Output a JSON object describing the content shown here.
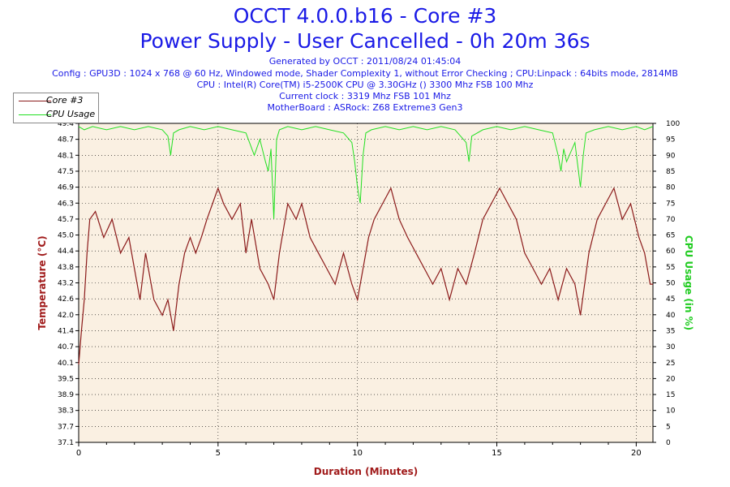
{
  "header": {
    "title": "OCCT 4.0.0.b16 - Core #3",
    "subtitle": "Power Supply - User Cancelled - 0h 20m 36s",
    "generated": "Generated by OCCT : 2011/08/24 01:45:04",
    "config": "Config : GPU3D : 1024 x 768 @ 60 Hz, Windowed mode, Shader Complexity 1, without Error Checking ; CPU:Linpack : 64bits mode, 2814MB",
    "cpu": "CPU : Intel(R) Core(TM) i5-2500K CPU @ 3.30GHz () 3300 Mhz FSB 100 Mhz",
    "clock": "Current clock : 3319 Mhz FSB 101 Mhz",
    "motherboard": "MotherBoard : ASRock: Z68 Extreme3 Gen3"
  },
  "colors": {
    "title": "#1a1ae6",
    "temperature": "#8b1a1a",
    "cpu_usage": "#22e022",
    "plot_bg": "#faf0e2",
    "axis_label_left": "#a01a1a",
    "axis_label_right": "#22cc22"
  },
  "chart_data": {
    "type": "line",
    "xlabel": "Duration (Minutes)",
    "ylabel": "Temperature (°C)",
    "y2label": "CPU Usage (in %)",
    "xlim": [
      0,
      20.6
    ],
    "ylim": [
      37.1,
      49.4
    ],
    "y2lim": [
      0,
      100
    ],
    "x_ticks": [
      "0",
      "5",
      "10",
      "15",
      "20"
    ],
    "y_ticks": [
      "37.1",
      "37.7",
      "38.3",
      "38.9",
      "39.5",
      "40.1",
      "40.7",
      "41.4",
      "42.0",
      "42.6",
      "43.2",
      "43.8",
      "44.4",
      "45.0",
      "45.7",
      "46.3",
      "46.9",
      "47.5",
      "48.1",
      "48.7",
      "49.4"
    ],
    "y2_ticks": [
      "0",
      "5",
      "10",
      "15",
      "20",
      "25",
      "30",
      "35",
      "40",
      "45",
      "50",
      "55",
      "60",
      "65",
      "70",
      "75",
      "80",
      "85",
      "90",
      "95",
      "100"
    ],
    "grid": true,
    "legend_position": "top-left",
    "series": [
      {
        "name": "Core #3",
        "axis": "left",
        "x": [
          0.0,
          0.1,
          0.2,
          0.3,
          0.4,
          0.6,
          0.9,
          1.2,
          1.5,
          1.8,
          2.0,
          2.2,
          2.4,
          2.7,
          3.0,
          3.2,
          3.4,
          3.6,
          3.8,
          4.0,
          4.2,
          4.4,
          4.6,
          4.8,
          5.0,
          5.2,
          5.5,
          5.8,
          6.0,
          6.2,
          6.5,
          6.8,
          7.0,
          7.2,
          7.5,
          7.8,
          8.0,
          8.3,
          8.6,
          8.9,
          9.2,
          9.5,
          9.8,
          10.0,
          10.2,
          10.4,
          10.6,
          10.9,
          11.2,
          11.5,
          11.8,
          12.1,
          12.4,
          12.7,
          13.0,
          13.3,
          13.6,
          13.9,
          14.2,
          14.5,
          14.8,
          15.1,
          15.4,
          15.7,
          16.0,
          16.3,
          16.6,
          16.9,
          17.2,
          17.5,
          17.8,
          18.0,
          18.3,
          18.6,
          18.9,
          19.2,
          19.5,
          19.8,
          20.1,
          20.3,
          20.5,
          20.6
        ],
        "values": [
          40.1,
          41.4,
          42.6,
          44.4,
          45.7,
          46.0,
          45.0,
          45.7,
          44.4,
          45.0,
          43.8,
          42.6,
          44.4,
          42.6,
          42.0,
          42.6,
          41.4,
          43.2,
          44.4,
          45.0,
          44.4,
          45.0,
          45.7,
          46.3,
          46.9,
          46.3,
          45.7,
          46.3,
          44.4,
          45.7,
          43.8,
          43.2,
          42.6,
          44.4,
          46.3,
          45.7,
          46.3,
          45.0,
          44.4,
          43.8,
          43.2,
          44.4,
          43.2,
          42.6,
          43.8,
          45.0,
          45.7,
          46.3,
          46.9,
          45.7,
          45.0,
          44.4,
          43.8,
          43.2,
          43.8,
          42.6,
          43.8,
          43.2,
          44.4,
          45.7,
          46.3,
          46.9,
          46.3,
          45.7,
          44.4,
          43.8,
          43.2,
          43.8,
          42.6,
          43.8,
          43.2,
          42.0,
          44.4,
          45.7,
          46.3,
          46.9,
          45.7,
          46.3,
          45.0,
          44.4,
          43.2,
          43.2
        ]
      },
      {
        "name": "CPU Usage",
        "axis": "right",
        "x": [
          0.0,
          0.2,
          0.5,
          1.0,
          1.5,
          2.0,
          2.5,
          3.0,
          3.2,
          3.3,
          3.4,
          3.6,
          4.0,
          4.5,
          5.0,
          5.5,
          6.0,
          6.3,
          6.5,
          6.7,
          6.8,
          6.9,
          7.0,
          7.1,
          7.2,
          7.5,
          8.0,
          8.5,
          9.0,
          9.5,
          9.8,
          9.9,
          10.0,
          10.1,
          10.2,
          10.3,
          10.5,
          11.0,
          11.5,
          12.0,
          12.5,
          13.0,
          13.5,
          13.9,
          14.0,
          14.1,
          14.5,
          15.0,
          15.5,
          16.0,
          16.5,
          17.0,
          17.2,
          17.3,
          17.4,
          17.5,
          17.8,
          18.0,
          18.1,
          18.2,
          18.5,
          19.0,
          19.5,
          20.0,
          20.3,
          20.6
        ],
        "values": [
          99,
          98,
          99,
          98,
          99,
          98,
          99,
          98,
          96,
          90,
          97,
          98,
          99,
          98,
          99,
          98,
          97,
          90,
          95,
          88,
          85,
          92,
          70,
          95,
          98,
          99,
          98,
          99,
          98,
          97,
          94,
          88,
          80,
          75,
          90,
          97,
          98,
          99,
          98,
          99,
          98,
          99,
          98,
          94,
          88,
          96,
          98,
          99,
          98,
          99,
          98,
          97,
          90,
          85,
          92,
          88,
          94,
          80,
          90,
          97,
          98,
          99,
          98,
          99,
          98,
          99
        ]
      }
    ]
  }
}
